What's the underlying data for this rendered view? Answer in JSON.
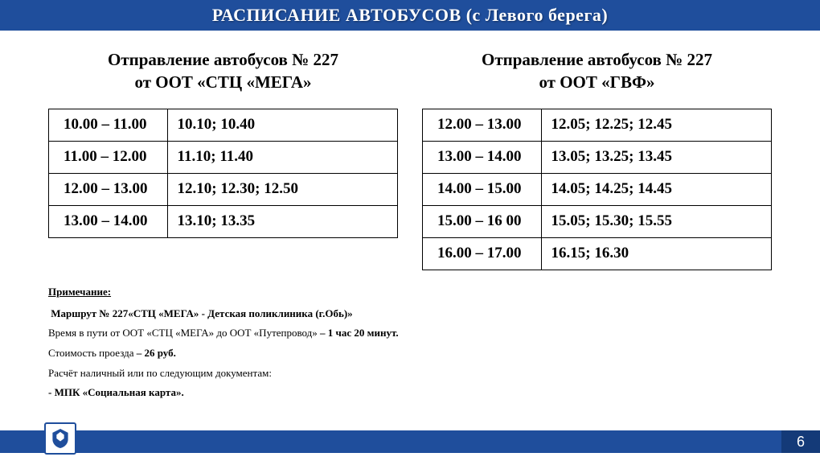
{
  "header": {
    "title": "РАСПИСАНИЕ АВТОБУСОВ (с Левого берега)"
  },
  "left": {
    "subtitle_line1": "Отправление автобусов № 227",
    "subtitle_line2": "от ООТ «СТЦ «МЕГА»",
    "rows": [
      {
        "range": "10.00 – 11.00",
        "times": "10.10; 10.40"
      },
      {
        "range": "11.00 – 12.00",
        "times": "11.10; 11.40"
      },
      {
        "range": "12.00 – 13.00",
        "times": "12.10; 12.30; 12.50"
      },
      {
        "range": "13.00 – 14.00",
        "times": "13.10; 13.35"
      }
    ]
  },
  "right": {
    "subtitle_line1": "Отправление автобусов № 227",
    "subtitle_line2": "от ООТ «ГВФ»",
    "rows": [
      {
        "range": "12.00 – 13.00",
        "times": "12.05; 12.25; 12.45"
      },
      {
        "range": "13.00 – 14.00",
        "times": "13.05; 13.25; 13.45"
      },
      {
        "range": "14.00 – 15.00",
        "times": "14.05; 14.25; 14.45"
      },
      {
        "range": "15.00 – 16 00",
        "times": "15.05; 15.30; 15.55"
      },
      {
        "range": "16.00 – 17.00",
        "times": "16.15; 16.30"
      }
    ]
  },
  "notes": {
    "title": "Примечание:",
    "route": "Маршрут № 227«СТЦ «МЕГА» - Детская поликлиника (г.Обь)»",
    "travel_prefix": "Время в пути от ООТ «СТЦ «МЕГА»  до ООТ «Путепровод» ",
    "travel_bold": "– 1 час 20 минут.",
    "fare_prefix": "Стоимость проезда ",
    "fare_bold": "– 26 руб.",
    "payment": "Расчёт наличный или по следующим документам:",
    "mpk": "- МПК «Социальная карта»."
  },
  "page_number": "6",
  "colors": {
    "header_bg": "#1f4e9c",
    "footer_bg": "#1f4e9c",
    "page_num_bg": "#143a78"
  }
}
